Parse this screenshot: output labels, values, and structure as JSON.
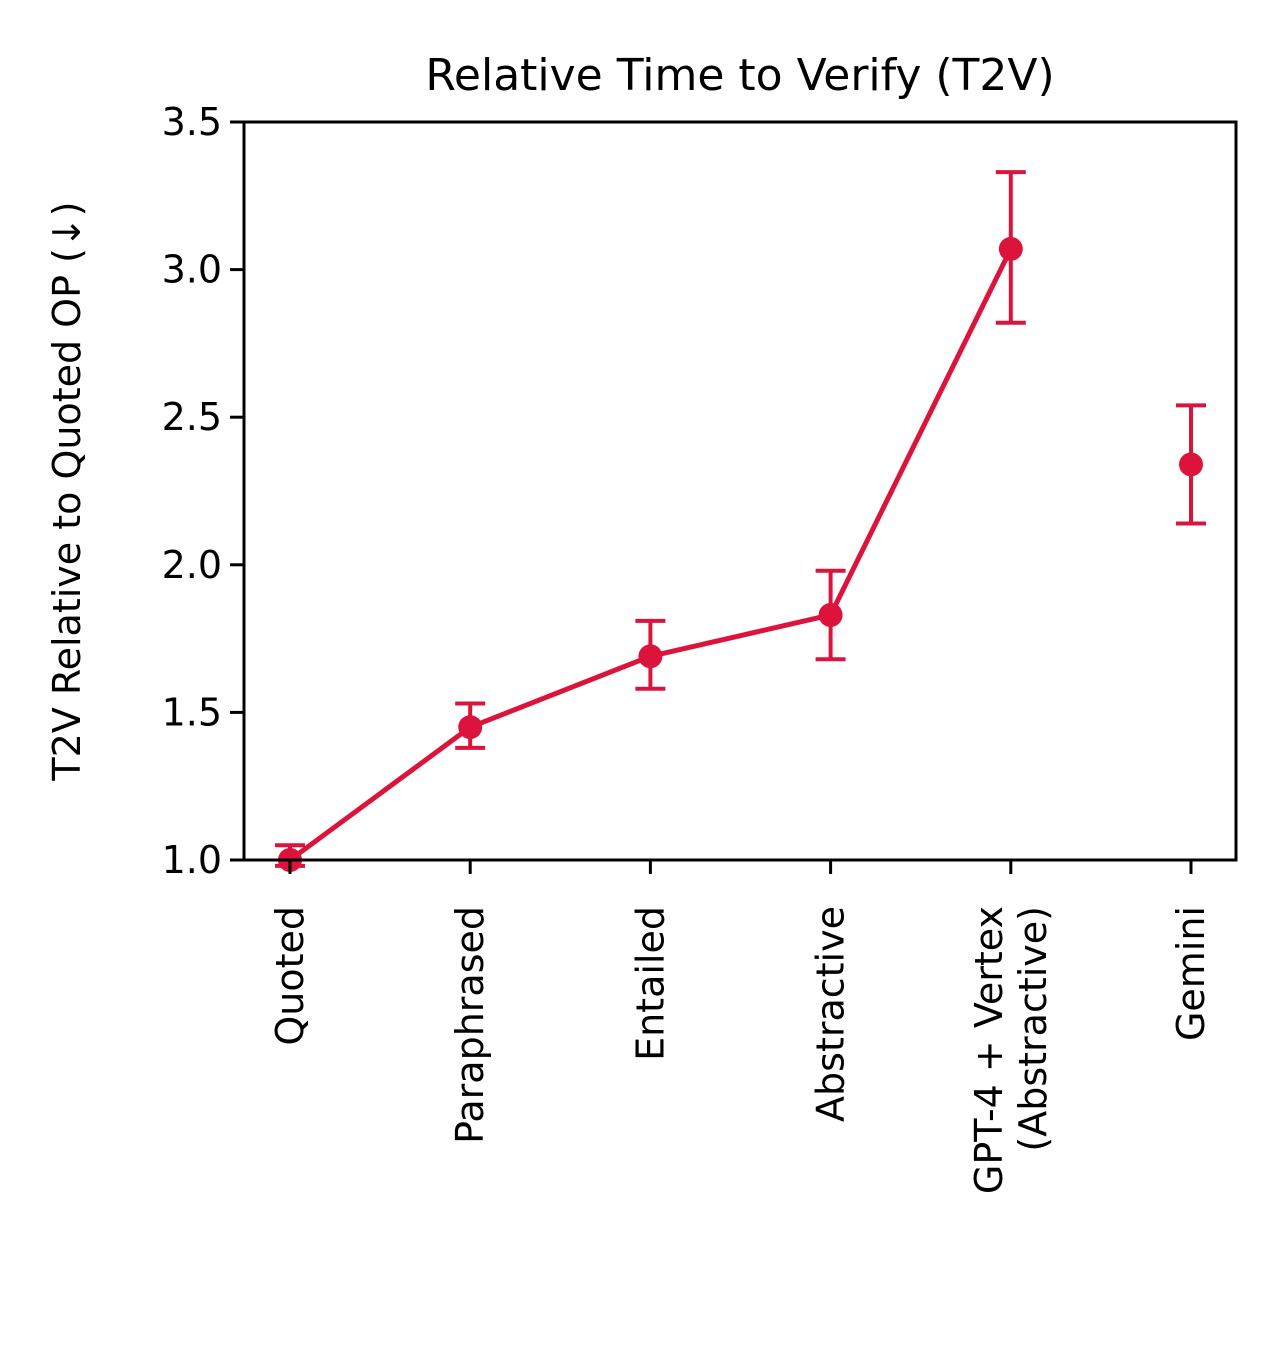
{
  "chart_data": {
    "type": "line",
    "title": "Relative Time to Verify (T2V)",
    "xlabel": "",
    "ylabel": "T2V Relative to Quoted OP (↓)",
    "categories": [
      "Quoted",
      "Paraphrased",
      "Entailed",
      "Abstractive",
      "GPT-4 + Vertex\n(Abstractive)",
      "Gemini"
    ],
    "ylim": [
      1.0,
      3.5
    ],
    "yticks": [
      "1.0",
      "1.5",
      "2.0",
      "2.5",
      "3.0",
      "3.5"
    ],
    "grid": false,
    "legend": "none",
    "color": "#dc143c",
    "series": [
      {
        "values": [
          1.0,
          1.45,
          1.69,
          1.83,
          3.07,
          2.34
        ],
        "err_low": [
          0.98,
          1.38,
          1.58,
          1.68,
          2.82,
          2.14
        ],
        "err_high": [
          1.05,
          1.53,
          1.81,
          1.98,
          3.33,
          2.54
        ],
        "connected": [
          true,
          true,
          true,
          true,
          true,
          false
        ]
      }
    ]
  }
}
